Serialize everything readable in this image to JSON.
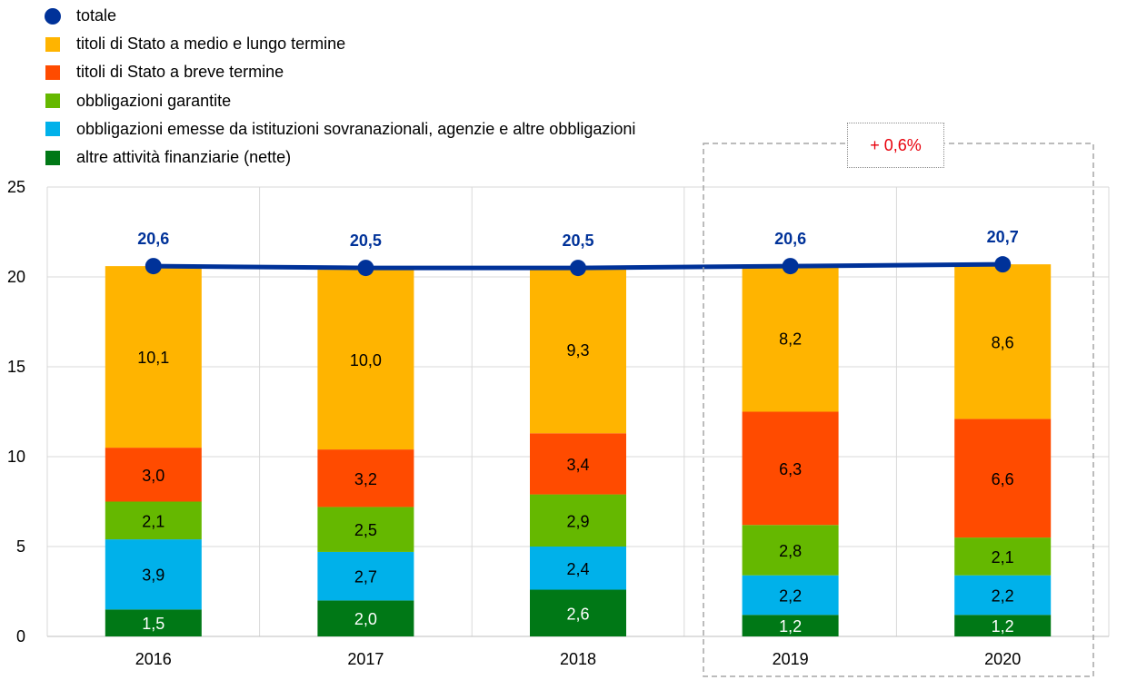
{
  "chart_data": {
    "type": "bar",
    "stacked": true,
    "categories": [
      "2016",
      "2017",
      "2018",
      "2019",
      "2020"
    ],
    "ylim": [
      0,
      25
    ],
    "yticks": [
      0,
      5,
      10,
      15,
      20,
      25
    ],
    "grid": true,
    "legend_position": "top-left",
    "series": [
      {
        "name": "altre attività finanziarie (nette)",
        "color": "#007816",
        "values": [
          1.5,
          2.0,
          2.6,
          1.2,
          1.2
        ],
        "labels": [
          "1,5",
          "2,0",
          "2,6",
          "1,2",
          "1,2"
        ],
        "label_color": "#ffffff"
      },
      {
        "name": "obbligazioni emesse da istituzioni sovranazionali, agenzie e altre obbligazioni",
        "color": "#00b1ea",
        "values": [
          3.9,
          2.7,
          2.4,
          2.2,
          2.2
        ],
        "labels": [
          "3,9",
          "2,7",
          "2,4",
          "2,2",
          "2,2"
        ],
        "label_color": "#000000"
      },
      {
        "name": "obbligazioni garantite",
        "color": "#65b800",
        "values": [
          2.1,
          2.5,
          2.9,
          2.8,
          2.1
        ],
        "labels": [
          "2,1",
          "2,5",
          "2,9",
          "2,8",
          "2,1"
        ],
        "label_color": "#000000"
      },
      {
        "name": "titoli di Stato a breve termine",
        "color": "#ff4b00",
        "values": [
          3.0,
          3.2,
          3.4,
          6.3,
          6.6
        ],
        "labels": [
          "3,0",
          "3,2",
          "3,4",
          "6,3",
          "6,6"
        ],
        "label_color": "#000000"
      },
      {
        "name": "titoli di Stato a medio e lungo termine",
        "color": "#ffb400",
        "values": [
          10.1,
          10.0,
          9.3,
          8.2,
          8.6
        ],
        "labels": [
          "10,1",
          "10,0",
          "9,3",
          "8,2",
          "8,6"
        ],
        "label_color": "#000000"
      }
    ],
    "line": {
      "name": "totale",
      "color": "#003299",
      "values": [
        20.6,
        20.5,
        20.5,
        20.6,
        20.7
      ],
      "labels": [
        "20,6",
        "20,5",
        "20,5",
        "20,6",
        "20,7"
      ]
    },
    "legend_order": [
      "totale",
      "titoli di Stato a medio e lungo termine",
      "titoli di Stato a breve termine",
      "obbligazioni garantite",
      "obbligazioni emesse da istituzioni sovranazionali, agenzie e altre obbligazioni",
      "altre attività finanziarie (nette)"
    ],
    "annotation": {
      "text": "+ 0,6%",
      "color": "#e8000b",
      "highlight_categories": [
        "2019",
        "2020"
      ]
    }
  }
}
